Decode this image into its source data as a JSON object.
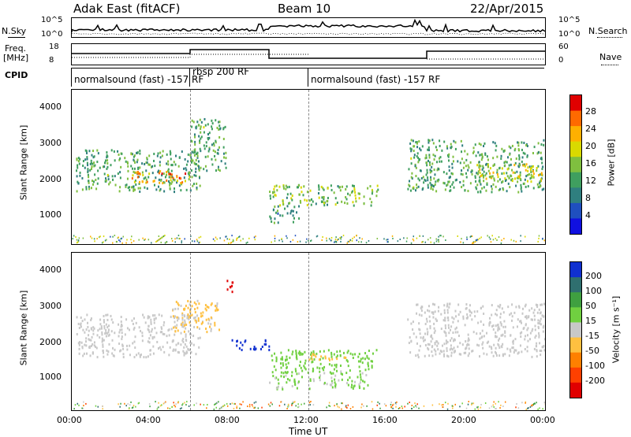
{
  "header": {
    "station": "Adak East (fitACF)",
    "beam": "Beam 10",
    "date": "22/Apr/2015"
  },
  "nsky": {
    "label": "N.Sky",
    "ticks": [
      "10^5",
      "10^0"
    ],
    "right_label": "N.Search",
    "right_ticks": [
      "10^5",
      "10^0"
    ]
  },
  "freq": {
    "label_line1": "Freq.",
    "label_line2": "[MHz]",
    "ticks": [
      "18",
      "8"
    ],
    "right_label": "Nave",
    "right_ticks": [
      "60",
      "0"
    ]
  },
  "cpid": {
    "label": "CPID",
    "segments": [
      {
        "text": "normalsound (fast) -157 RF",
        "start": "00:00",
        "end": "06:00"
      },
      {
        "text": "rbsp 200 RF",
        "start": "06:00",
        "end": "12:00"
      },
      {
        "text": "normalsound (fast) -157 RF",
        "start": "12:00",
        "end": "24:00"
      }
    ]
  },
  "power_panel": {
    "ylabel": "Slant Range [km]",
    "yticks": [
      "4000",
      "3000",
      "2000",
      "1000"
    ],
    "colorbar": {
      "label": "Power [dB]",
      "ticks": [
        "28",
        "24",
        "20",
        "16",
        "12",
        "8",
        "4"
      ],
      "colors": [
        "#e00000",
        "#ff6a00",
        "#ffb000",
        "#d9d900",
        "#7fbf3f",
        "#3f9f5f",
        "#2f7f7f",
        "#1f4fbf",
        "#1010e0"
      ]
    }
  },
  "velocity_panel": {
    "ylabel": "Slant Range [km]",
    "yticks": [
      "4000",
      "3000",
      "2000",
      "1000"
    ],
    "colorbar": {
      "label": "Velocity [m s⁻¹]",
      "ticks": [
        "200",
        "100",
        "50",
        "15",
        "-15",
        "-50",
        "-100",
        "-200"
      ],
      "colors": [
        "#1030d0",
        "#2f6f6f",
        "#3fa040",
        "#70d040",
        "#c8c8c8",
        "#ffc040",
        "#ff8000",
        "#ff4000",
        "#e00000"
      ]
    }
  },
  "xaxis": {
    "label": "Time UT",
    "ticks": [
      "00:00",
      "04:00",
      "08:00",
      "12:00",
      "16:00",
      "20:00",
      "00:00"
    ]
  },
  "chart_data": [
    {
      "type": "heatmap",
      "title": "Power",
      "xlabel": "Time UT",
      "ylabel": "Slant Range [km]",
      "x_range_hours": [
        0,
        24
      ],
      "ylim": [
        180,
        4600
      ],
      "value_label": "Power [dB]",
      "value_range": [
        0,
        30
      ],
      "echo_regions": [
        {
          "t_start": 0.2,
          "t_end": 6.5,
          "range_min": 1700,
          "range_max": 2900,
          "power": 12
        },
        {
          "t_start": 3.0,
          "t_end": 6.0,
          "range_min": 1950,
          "range_max": 2300,
          "power": 24
        },
        {
          "t_start": 6.0,
          "t_end": 7.8,
          "range_min": 2300,
          "range_max": 3800,
          "power": 12
        },
        {
          "t_start": 10.0,
          "t_end": 15.5,
          "range_min": 1300,
          "range_max": 1900,
          "power": 14
        },
        {
          "t_start": 10.0,
          "t_end": 11.5,
          "range_min": 800,
          "range_max": 1300,
          "power": 10
        },
        {
          "t_start": 17.0,
          "t_end": 24.0,
          "range_min": 1700,
          "range_max": 3200,
          "power": 12
        },
        {
          "t_start": 20.5,
          "t_end": 23.8,
          "range_min": 2000,
          "range_max": 2500,
          "power": 18
        }
      ]
    },
    {
      "type": "heatmap",
      "title": "Velocity",
      "xlabel": "Time UT",
      "ylabel": "Slant Range [km]",
      "x_range_hours": [
        0,
        24
      ],
      "ylim": [
        180,
        4600
      ],
      "value_label": "Velocity [m s⁻¹]",
      "value_range": [
        -200,
        200
      ],
      "echo_regions": [
        {
          "t_start": 0.2,
          "t_end": 6.5,
          "range_min": 1700,
          "range_max": 2900,
          "velocity": 0
        },
        {
          "t_start": 5.0,
          "t_end": 7.5,
          "range_min": 2400,
          "range_max": 3300,
          "velocity": -30
        },
        {
          "t_start": 7.8,
          "t_end": 8.3,
          "range_min": 3500,
          "range_max": 3900,
          "velocity": -200
        },
        {
          "t_start": 8.0,
          "t_end": 10.0,
          "range_min": 1900,
          "range_max": 2200,
          "velocity": 200
        },
        {
          "t_start": 10.0,
          "t_end": 15.5,
          "range_min": 1300,
          "range_max": 1900,
          "velocity": 50
        },
        {
          "t_start": 10.0,
          "t_end": 15.0,
          "range_min": 800,
          "range_max": 1300,
          "velocity": 30
        },
        {
          "t_start": 12.0,
          "t_end": 14.0,
          "range_min": 1600,
          "range_max": 1800,
          "velocity": -40
        },
        {
          "t_start": 17.0,
          "t_end": 24.0,
          "range_min": 1700,
          "range_max": 3200,
          "velocity": 0
        }
      ]
    }
  ]
}
